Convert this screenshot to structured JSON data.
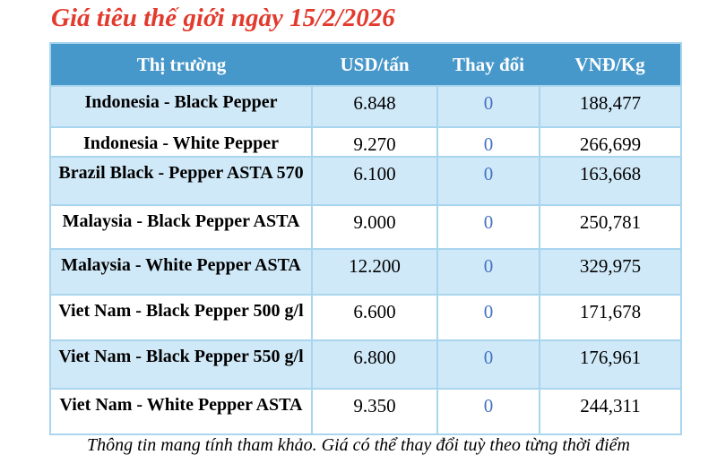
{
  "title": "Giá tiêu thế giới ngày 15/2/2026",
  "colors": {
    "title_red": "#e23b2e",
    "header_bg": "#4697ca",
    "header_text": "#ffffff",
    "row_alt_bg": "#d0e9f8",
    "row_bg": "#ffffff",
    "border": "#a9d5ee",
    "change_blue": "#4472c4",
    "text": "#000000"
  },
  "table": {
    "columns": [
      "Thị trường",
      "USD/tấn",
      "Thay đổi",
      "VNĐ/Kg"
    ],
    "rows": [
      {
        "market": "Indonesia - Black Pepper",
        "usd": "6.848",
        "change": "0",
        "vnd": "188,477"
      },
      {
        "market": "Indonesia - White Pepper",
        "usd": "9.270",
        "change": "0",
        "vnd": "266,699"
      },
      {
        "market": "Brazil Black - Pepper ASTA 570",
        "usd": "6.100",
        "change": "0",
        "vnd": "163,668"
      },
      {
        "market": "Malaysia - Black Pepper ASTA",
        "usd": "9.000",
        "change": "0",
        "vnd": "250,781"
      },
      {
        "market": "Malaysia - White Pepper ASTA",
        "usd": "12.200",
        "change": "0",
        "vnd": "329,975"
      },
      {
        "market": "Viet Nam - Black Pepper 500 g/l",
        "usd": "6.600",
        "change": "0",
        "vnd": "171,678"
      },
      {
        "market": "Viet Nam - Black Pepper 550 g/l",
        "usd": "6.800",
        "change": "0",
        "vnd": "176,961"
      },
      {
        "market": "Viet Nam - White Pepper ASTA",
        "usd": "9.350",
        "change": "0",
        "vnd": "244,311"
      }
    ]
  },
  "footer_note": "Thông tin mang tính tham khảo. Giá có thể thay đổi tuỳ theo từng thời điểm"
}
